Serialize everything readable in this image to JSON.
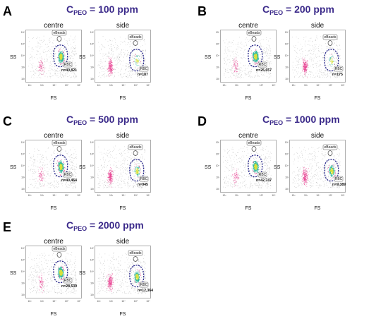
{
  "axis": {
    "x_label": "FS",
    "y_label": "SS",
    "x_ticks": [
      "10²",
      "10³",
      "10⁴",
      "10⁵",
      "10⁶"
    ],
    "y_ticks": [
      "10²",
      "10³",
      "10⁴",
      "10⁵",
      "10⁶"
    ]
  },
  "columns": [
    "centre",
    "side"
  ],
  "gates": {
    "beads": "eBeads",
    "rbc": "RBC"
  },
  "colors": {
    "title": "#3b2a8a",
    "gate": "#2b2a8c",
    "events_gray": "#8a8a8a",
    "hot": "#e8338a",
    "mid": "#2bb59a",
    "peak": "#d8e23a"
  },
  "chart_data": [
    {
      "type": "scatter",
      "panel": "A",
      "title_prefix": "C",
      "title_sub": "PEO",
      "title_value": "= 100 ppm",
      "centre": {
        "count": "n=40,821",
        "rbc_fraction": "high"
      },
      "side": {
        "count": "n=187",
        "rbc_fraction": "very low"
      }
    },
    {
      "type": "scatter",
      "panel": "B",
      "title_prefix": "C",
      "title_sub": "PEO",
      "title_value": "= 200 ppm",
      "centre": {
        "count": "n=25,657",
        "rbc_fraction": "high"
      },
      "side": {
        "count": "n=175",
        "rbc_fraction": "very low"
      }
    },
    {
      "type": "scatter",
      "panel": "C",
      "title_prefix": "C",
      "title_sub": "PEO",
      "title_value": "= 500 ppm",
      "centre": {
        "count": "n=40,464",
        "rbc_fraction": "high"
      },
      "side": {
        "count": "n=945",
        "rbc_fraction": "low"
      }
    },
    {
      "type": "scatter",
      "panel": "D",
      "title_prefix": "C",
      "title_sub": "PEO",
      "title_value": "= 1000 ppm",
      "centre": {
        "count": "n=42,747",
        "rbc_fraction": "high"
      },
      "side": {
        "count": "n=9,389",
        "rbc_fraction": "medium"
      }
    },
    {
      "type": "scatter",
      "panel": "E",
      "title_prefix": "C",
      "title_sub": "PEO",
      "title_value": "= 2000 ppm",
      "centre": {
        "count": "n=28,539",
        "rbc_fraction": "high"
      },
      "side": {
        "count": "n=12,364",
        "rbc_fraction": "medium"
      }
    }
  ]
}
